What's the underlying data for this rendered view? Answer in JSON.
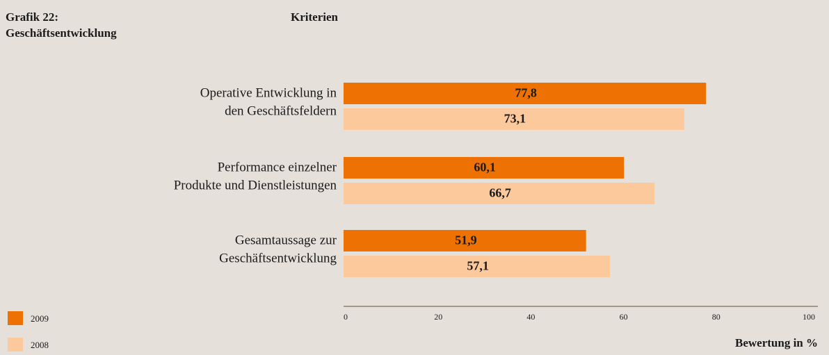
{
  "chart_data": {
    "type": "bar",
    "orientation": "horizontal",
    "title": [
      "Grafik 22:",
      "Geschäftsentwicklung"
    ],
    "y_axis_label": "Kriterien",
    "x_axis_label": "Bewertung in %",
    "categories": [
      [
        "Operative Entwicklung in",
        "den Geschäftsfeldern"
      ],
      [
        "Performance einzelner",
        "Produkte und Dienstleistungen"
      ],
      [
        "Gesamtaussage zur",
        "Geschäftsentwicklung"
      ]
    ],
    "series": [
      {
        "name": "2009",
        "color": "#ee7203",
        "values": [
          77.8,
          60.1,
          51.9
        ],
        "value_labels": [
          "77,8",
          "60,1",
          "51,9"
        ]
      },
      {
        "name": "2008",
        "color": "#fbc99c",
        "values": [
          73.1,
          66.7,
          57.1
        ],
        "value_labels": [
          "73,1",
          "66,7",
          "57,1"
        ]
      }
    ],
    "xlim": [
      0,
      100
    ],
    "xticks": [
      0,
      20,
      40,
      60,
      80,
      100
    ],
    "legend": "bottom-left"
  }
}
